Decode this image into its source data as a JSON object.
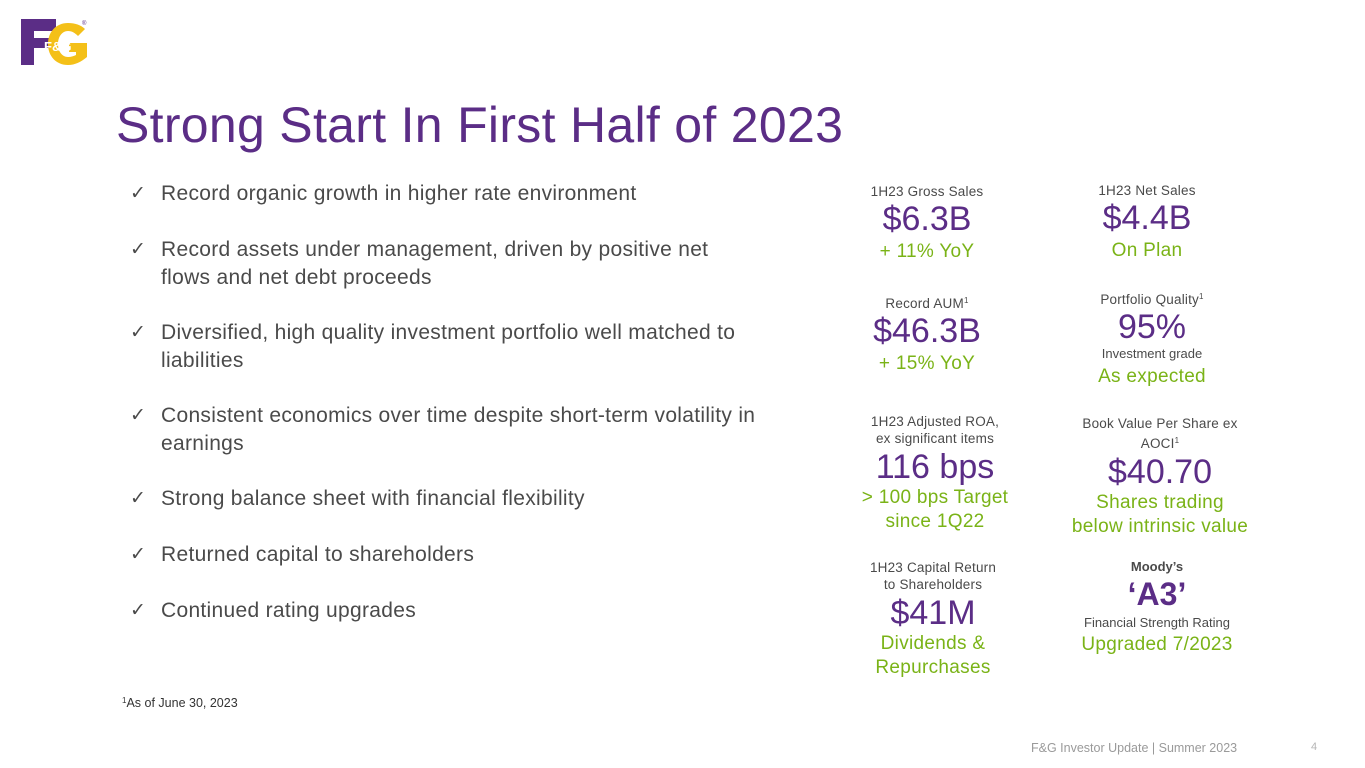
{
  "logo": {
    "text": "F&G",
    "registered": "®"
  },
  "title": "Strong Start In First Half of 2023",
  "bullets": [
    {
      "check": "✓",
      "text": "Record organic growth in higher rate environment"
    },
    {
      "check": "✓",
      "text": "Record assets under management, driven by positive net flows and net debt proceeds"
    },
    {
      "check": "✓",
      "text": "Diversified, high quality investment portfolio well matched to liabilities"
    },
    {
      "check": "✓",
      "text": "Consistent economics over time despite short-term volatility in earnings"
    },
    {
      "check": "✓",
      "text": "Strong balance sheet with financial flexibility"
    },
    {
      "check": "✓",
      "text": "Returned capital to shareholders"
    },
    {
      "check": "✓",
      "text": "Continued rating upgrades"
    }
  ],
  "metrics": {
    "gross_sales": {
      "label": "1H23 Gross Sales",
      "value": "$6.3B",
      "sub": "+ 11% YoY"
    },
    "net_sales": {
      "label": "1H23 Net Sales",
      "value": "$4.4B",
      "sub": "On Plan"
    },
    "aum": {
      "label": "Record AUM",
      "sup": "1",
      "value": "$46.3B",
      "sub": "+ 15% YoY"
    },
    "portfolio": {
      "label": "Portfolio Quality",
      "sup": "1",
      "value": "95%",
      "note": "Investment grade",
      "sub": "As expected"
    },
    "roa": {
      "label_line1": "1H23 Adjusted ROA,",
      "label_line2": "ex significant items",
      "value": "116 bps",
      "sub_line1": "> 100 bps Target",
      "sub_line2": "since 1Q22"
    },
    "book_value": {
      "label_line1": "Book Value Per Share ex",
      "label_line2": "AOCI",
      "sup": "1",
      "value": "$40.70",
      "sub_line1": "Shares trading",
      "sub_line2": "below intrinsic value"
    },
    "capital_return": {
      "label_line1": "1H23 Capital Return",
      "label_line2": "to Shareholders",
      "value": "$41M",
      "sub_line1": "Dividends &",
      "sub_line2": "Repurchases"
    },
    "rating": {
      "agency": "Moody’s",
      "value": "‘A3’",
      "note": "Financial Strength Rating",
      "sub": "Upgraded 7/2023"
    }
  },
  "footnote": {
    "sup": "1",
    "text": "As of June 30, 2023"
  },
  "footer": {
    "text": "F&G Investor Update | Summer 2023",
    "page": "4"
  },
  "colors": {
    "brand_purple": "#5b2d86",
    "accent_yellow": "#f4c018",
    "accent_green": "#7ab317",
    "text_gray": "#4a4a4a"
  }
}
